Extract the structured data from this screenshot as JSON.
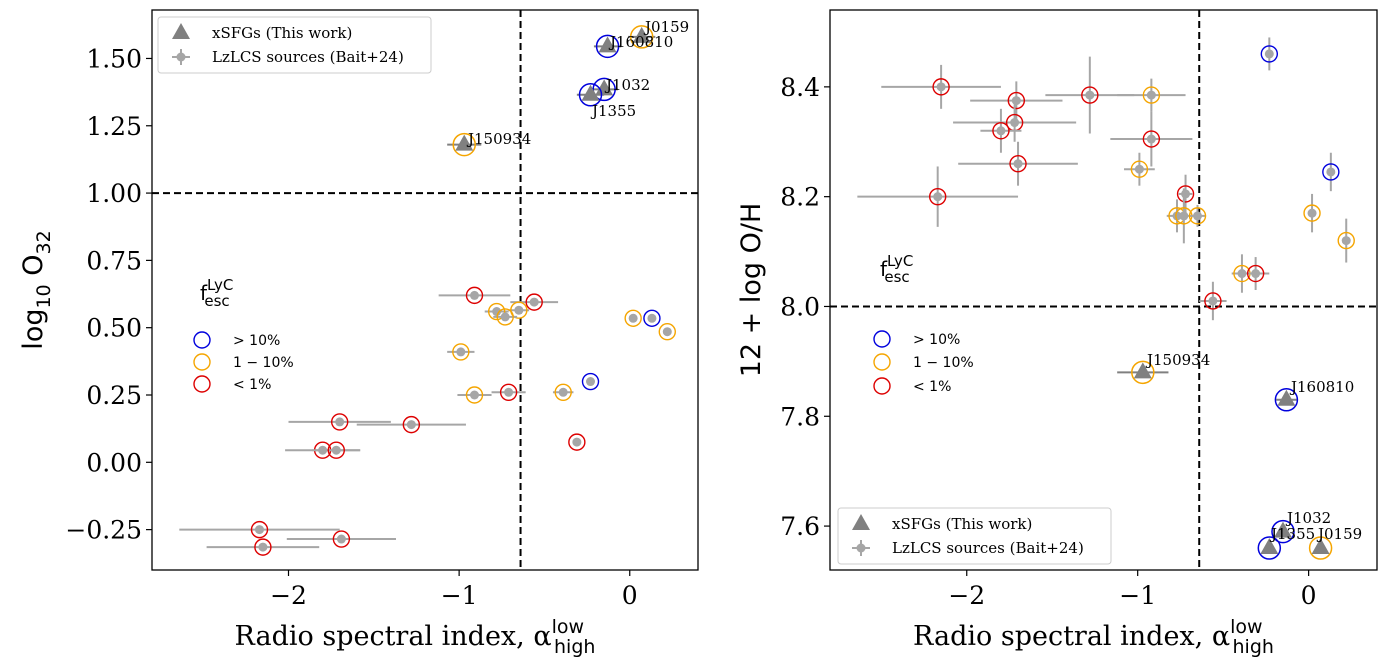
{
  "chart_data": [
    {
      "type": "scatter",
      "xlabel": "Radio spectral index, α",
      "xlabel_sup": "low",
      "xlabel_sub": "high",
      "ylabel": "log",
      "ylabel_sub1": "10",
      "ylabel_mid": "O",
      "ylabel_sub2": "32",
      "xlim": [
        -2.8,
        0.4
      ],
      "ylim": [
        -0.4,
        1.68
      ],
      "xticks": [
        -2,
        -1,
        0
      ],
      "xtick_labels": [
        "−2",
        "−1",
        "0"
      ],
      "yticks": [
        -0.25,
        0,
        0.25,
        0.5,
        0.75,
        1.0,
        1.25,
        1.5
      ],
      "ytick_labels": [
        "−0.25",
        "0.00",
        "0.25",
        "0.50",
        "0.75",
        "1.00",
        "1.25",
        "1.50"
      ],
      "hline": 1.0,
      "vline": -0.64,
      "legend_placement": "upper left",
      "legend": [
        "xSFGs (This work)",
        "LzLCS sources (Bait+24)"
      ],
      "fesc_title": "f",
      "fesc_sup": "LyC",
      "fesc_sub": "esc",
      "fesc_categories": [
        {
          "label": "> 10%",
          "color": "#0000dd"
        },
        {
          "label": "1 − 10%",
          "color": "#f5a500"
        },
        {
          "label": "< 1%",
          "color": "#dd0000"
        }
      ],
      "xsfgs": [
        {
          "name": "J0159",
          "x": 0.07,
          "y": 1.58,
          "xerr": 0.08,
          "yerr": 0.0,
          "fesc": "1 − 10%"
        },
        {
          "name": "J160810",
          "x": -0.13,
          "y": 1.545,
          "xerr": 0.08,
          "yerr": 0.0,
          "fesc": "> 10%"
        },
        {
          "name": "J1032",
          "x": -0.15,
          "y": 1.385,
          "xerr": 0.08,
          "yerr": 0.0,
          "fesc": "> 10%"
        },
        {
          "name": "J1355",
          "x": -0.23,
          "y": 1.365,
          "xerr": 0.08,
          "yerr": 0.0,
          "fesc": "> 10%"
        },
        {
          "name": "J150934",
          "x": -0.97,
          "y": 1.18,
          "xerr": 0.1,
          "yerr": 0.0,
          "fesc": "1 − 10%"
        }
      ],
      "lzlcs": [
        {
          "x": -0.91,
          "y": 0.62,
          "xerr": 0.21,
          "yerr": 0.0,
          "fesc": "< 1%"
        },
        {
          "x": -0.56,
          "y": 0.595,
          "xerr": 0.14,
          "yerr": 0.0,
          "fesc": "< 1%"
        },
        {
          "x": -0.65,
          "y": 0.565,
          "xerr": 0.06,
          "yerr": 0.0,
          "fesc": "1 − 10%"
        },
        {
          "x": -0.78,
          "y": 0.56,
          "xerr": 0.07,
          "yerr": 0.0,
          "fesc": "1 − 10%"
        },
        {
          "x": -0.73,
          "y": 0.54,
          "xerr": 0.07,
          "yerr": 0.0,
          "fesc": "1 − 10%"
        },
        {
          "x": 0.02,
          "y": 0.535,
          "xerr": 0.0,
          "yerr": 0.0,
          "fesc": "1 − 10%"
        },
        {
          "x": 0.13,
          "y": 0.535,
          "xerr": 0.0,
          "yerr": 0.0,
          "fesc": "> 10%"
        },
        {
          "x": 0.22,
          "y": 0.485,
          "xerr": 0.0,
          "yerr": 0.0,
          "fesc": "1 − 10%"
        },
        {
          "x": -0.99,
          "y": 0.41,
          "xerr": 0.08,
          "yerr": 0.0,
          "fesc": "1 − 10%"
        },
        {
          "x": -0.23,
          "y": 0.3,
          "xerr": 0.0,
          "yerr": 0.0,
          "fesc": "> 10%"
        },
        {
          "x": -0.39,
          "y": 0.26,
          "xerr": 0.06,
          "yerr": 0.0,
          "fesc": "1 − 10%"
        },
        {
          "x": -0.71,
          "y": 0.26,
          "xerr": 0.1,
          "yerr": 0.0,
          "fesc": "< 1%"
        },
        {
          "x": -0.91,
          "y": 0.25,
          "xerr": 0.1,
          "yerr": 0.0,
          "fesc": "1 − 10%"
        },
        {
          "x": -1.7,
          "y": 0.15,
          "xerr": 0.3,
          "yerr": 0.0,
          "fesc": "< 1%"
        },
        {
          "x": -1.28,
          "y": 0.14,
          "xerr": 0.32,
          "yerr": 0.0,
          "fesc": "< 1%"
        },
        {
          "x": -0.31,
          "y": 0.075,
          "xerr": 0.0,
          "yerr": 0.0,
          "fesc": "< 1%"
        },
        {
          "x": -1.8,
          "y": 0.045,
          "xerr": 0.22,
          "yerr": 0.0,
          "fesc": "< 1%"
        },
        {
          "x": -1.72,
          "y": 0.045,
          "xerr": 0.14,
          "yerr": 0.0,
          "fesc": "< 1%"
        },
        {
          "x": -2.17,
          "y": -0.25,
          "xerr": 0.47,
          "yerr": 0.0,
          "fesc": "< 1%"
        },
        {
          "x": -1.69,
          "y": -0.285,
          "xerr": 0.32,
          "yerr": 0.0,
          "fesc": "< 1%"
        },
        {
          "x": -2.15,
          "y": -0.315,
          "xerr": 0.33,
          "yerr": 0.0,
          "fesc": "< 1%"
        }
      ]
    },
    {
      "type": "scatter",
      "xlabel": "Radio spectral index, α",
      "xlabel_sup": "low",
      "xlabel_sub": "high",
      "ylabel": "12 + log O/H",
      "xlim": [
        -2.8,
        0.4
      ],
      "ylim": [
        7.52,
        8.54
      ],
      "xticks": [
        -2,
        -1,
        0
      ],
      "xtick_labels": [
        "−2",
        "−1",
        "0"
      ],
      "yticks": [
        7.6,
        7.8,
        8.0,
        8.2,
        8.4
      ],
      "ytick_labels": [
        "7.6",
        "7.8",
        "8.0",
        "8.2",
        "8.4"
      ],
      "hline": 8.0,
      "vline": -0.64,
      "legend_placement": "lower left",
      "legend": [
        "xSFGs (This work)",
        "LzLCS sources (Bait+24)"
      ],
      "fesc_title": "f",
      "fesc_sup": "LyC",
      "fesc_sub": "esc",
      "fesc_categories": [
        {
          "label": "> 10%",
          "color": "#0000dd"
        },
        {
          "label": "1 − 10%",
          "color": "#f5a500"
        },
        {
          "label": "< 1%",
          "color": "#dd0000"
        }
      ],
      "xsfgs": [
        {
          "name": "J150934",
          "x": -0.97,
          "y": 7.88,
          "xerr": 0.15,
          "yerr": 0.0,
          "fesc": "1 − 10%"
        },
        {
          "name": "J160810",
          "x": -0.13,
          "y": 7.83,
          "xerr": 0.06,
          "yerr": 0.0,
          "fesc": "> 10%"
        },
        {
          "name": "J1032",
          "x": -0.15,
          "y": 7.59,
          "xerr": 0.0,
          "yerr": 0.0,
          "fesc": "> 10%"
        },
        {
          "name": "J1355",
          "x": -0.23,
          "y": 7.56,
          "xerr": 0.0,
          "yerr": 0.0,
          "fesc": "> 10%"
        },
        {
          "name": "J0159",
          "x": 0.07,
          "y": 7.56,
          "xerr": 0.0,
          "yerr": 0.0,
          "fesc": "1 − 10%"
        }
      ],
      "lzlcs": [
        {
          "x": -0.23,
          "y": 8.46,
          "xerr": 0.0,
          "yerr": 0.03,
          "fesc": "> 10%"
        },
        {
          "x": -2.15,
          "y": 8.4,
          "xerr": 0.35,
          "yerr": 0.04,
          "fesc": "< 1%"
        },
        {
          "x": -1.28,
          "y": 8.385,
          "xerr": 0.26,
          "yerr": 0.07,
          "fesc": "< 1%"
        },
        {
          "x": -0.92,
          "y": 8.385,
          "xerr": 0.2,
          "yerr": 0.03,
          "fesc": "1 − 10%"
        },
        {
          "x": -1.71,
          "y": 8.375,
          "xerr": 0.27,
          "yerr": 0.035,
          "fesc": "< 1%"
        },
        {
          "x": -1.72,
          "y": 8.335,
          "xerr": 0.36,
          "yerr": 0.035,
          "fesc": "< 1%"
        },
        {
          "x": -1.8,
          "y": 8.32,
          "xerr": 0.12,
          "yerr": 0.04,
          "fesc": "< 1%"
        },
        {
          "x": -0.92,
          "y": 8.305,
          "xerr": 0.24,
          "yerr": 0.05,
          "fesc": "< 1%"
        },
        {
          "x": -1.7,
          "y": 8.26,
          "xerr": 0.35,
          "yerr": 0.04,
          "fesc": "< 1%"
        },
        {
          "x": -0.99,
          "y": 8.25,
          "xerr": 0.09,
          "yerr": 0.03,
          "fesc": "1 − 10%"
        },
        {
          "x": 0.13,
          "y": 8.245,
          "xerr": 0.0,
          "yerr": 0.035,
          "fesc": "> 10%"
        },
        {
          "x": -0.72,
          "y": 8.205,
          "xerr": 0.04,
          "yerr": 0.035,
          "fesc": "< 1%"
        },
        {
          "x": -2.17,
          "y": 8.2,
          "xerr": 0.47,
          "yerr": 0.055,
          "fesc": "< 1%"
        },
        {
          "x": 0.02,
          "y": 8.17,
          "xerr": 0.0,
          "yerr": 0.035,
          "fesc": "1 − 10%"
        },
        {
          "x": -0.77,
          "y": 8.165,
          "xerr": 0.06,
          "yerr": 0.03,
          "fesc": "1 − 10%"
        },
        {
          "x": -0.73,
          "y": 8.165,
          "xerr": 0.06,
          "yerr": 0.05,
          "fesc": "1 − 10%"
        },
        {
          "x": -0.65,
          "y": 8.165,
          "xerr": 0.05,
          "yerr": 0.02,
          "fesc": "1 − 10%"
        },
        {
          "x": 0.22,
          "y": 8.12,
          "xerr": 0.0,
          "yerr": 0.04,
          "fesc": "1 − 10%"
        },
        {
          "x": -0.39,
          "y": 8.06,
          "xerr": 0.06,
          "yerr": 0.035,
          "fesc": "1 − 10%"
        },
        {
          "x": -0.31,
          "y": 8.06,
          "xerr": 0.08,
          "yerr": 0.03,
          "fesc": "< 1%"
        },
        {
          "x": -0.56,
          "y": 8.01,
          "xerr": 0.08,
          "yerr": 0.035,
          "fesc": "< 1%"
        }
      ]
    }
  ]
}
